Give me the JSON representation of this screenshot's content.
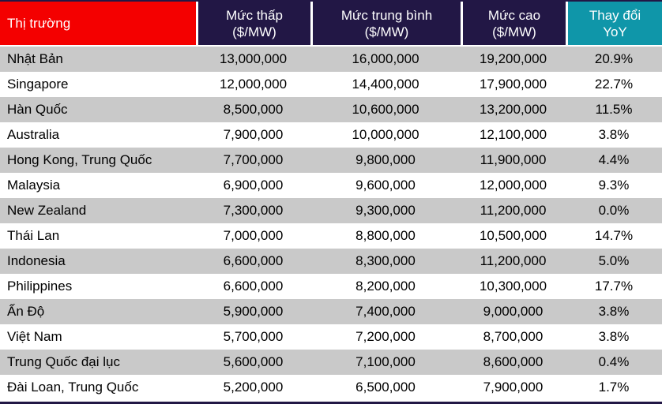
{
  "colors": {
    "header_market_bg": "#f40000",
    "header_price_bg": "#221745",
    "header_yoy_bg": "#0f96a9",
    "header_text": "#ffffff",
    "row_stripe_bg": "#c9c9c9",
    "row_alt_bg": "#ffffff",
    "body_text": "#000000",
    "table_border": "#221745"
  },
  "chart_data": {
    "type": "table",
    "columns": [
      {
        "label": "Thị trường",
        "sublabel": ""
      },
      {
        "label": "Mức thấp",
        "sublabel": "($/MW)"
      },
      {
        "label": "Mức trung bình",
        "sublabel": "($/MW)"
      },
      {
        "label": "Mức cao",
        "sublabel": "($/MW)"
      },
      {
        "label": "Thay đổi",
        "sublabel": "YoY"
      }
    ],
    "rows": [
      {
        "market": "Nhật Bản",
        "low": "13,000,000",
        "mid": "16,000,000",
        "high": "19,200,000",
        "yoy": "20.9%"
      },
      {
        "market": "Singapore",
        "low": "12,000,000",
        "mid": "14,400,000",
        "high": "17,900,000",
        "yoy": "22.7%"
      },
      {
        "market": "Hàn Quốc",
        "low": "8,500,000",
        "mid": "10,600,000",
        "high": "13,200,000",
        "yoy": "11.5%"
      },
      {
        "market": "Australia",
        "low": "7,900,000",
        "mid": "10,000,000",
        "high": "12,100,000",
        "yoy": "3.8%"
      },
      {
        "market": "Hong Kong, Trung Quốc",
        "low": "7,700,000",
        "mid": "9,800,000",
        "high": "11,900,000",
        "yoy": "4.4%"
      },
      {
        "market": "Malaysia",
        "low": "6,900,000",
        "mid": "9,600,000",
        "high": "12,000,000",
        "yoy": "9.3%"
      },
      {
        "market": "New Zealand",
        "low": "7,300,000",
        "mid": "9,300,000",
        "high": "11,200,000",
        "yoy": "0.0%"
      },
      {
        "market": "Thái Lan",
        "low": "7,000,000",
        "mid": "8,800,000",
        "high": "10,500,000",
        "yoy": "14.7%"
      },
      {
        "market": "Indonesia",
        "low": "6,600,000",
        "mid": "8,300,000",
        "high": "11,200,000",
        "yoy": "5.0%"
      },
      {
        "market": "Philippines",
        "low": "6,600,000",
        "mid": "8,200,000",
        "high": "10,300,000",
        "yoy": "17.7%"
      },
      {
        "market": "Ấn Độ",
        "low": "5,900,000",
        "mid": "7,400,000",
        "high": "9,000,000",
        "yoy": "3.8%"
      },
      {
        "market": "Việt Nam",
        "low": "5,700,000",
        "mid": "7,200,000",
        "high": "8,700,000",
        "yoy": "3.8%"
      },
      {
        "market": "Trung Quốc đại lục",
        "low": "5,600,000",
        "mid": "7,100,000",
        "high": "8,600,000",
        "yoy": "0.4%"
      },
      {
        "market": "Đài Loan, Trung Quốc",
        "low": "5,200,000",
        "mid": "6,500,000",
        "high": "7,900,000",
        "yoy": "1.7%"
      }
    ]
  }
}
